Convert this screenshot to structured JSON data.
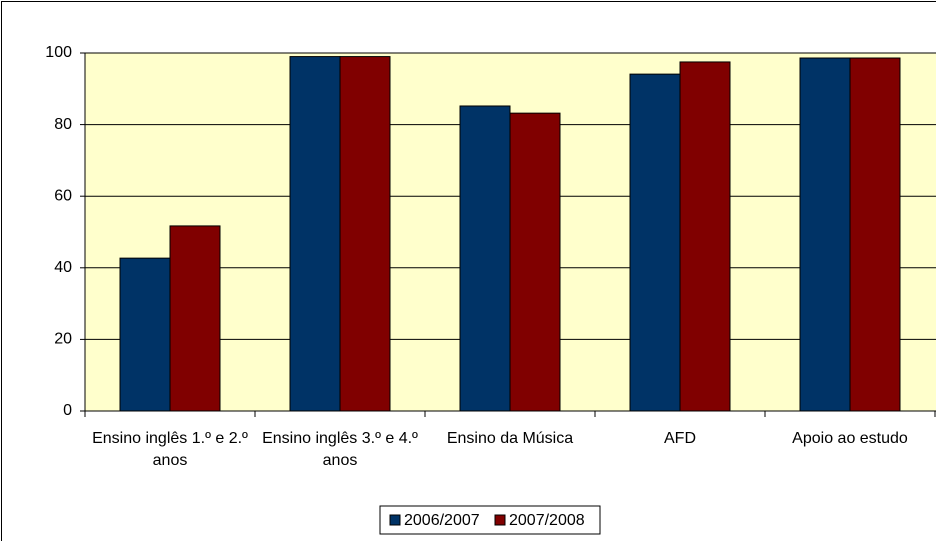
{
  "chart_data": {
    "type": "bar",
    "categories": [
      "Ensino inglês 1.º e 2.º anos",
      "Ensino inglês 3.º e 4.º anos",
      "Ensino da Música",
      "AFD",
      "Apoio ao estudo"
    ],
    "series": [
      {
        "name": "2006/2007",
        "color": "#003366",
        "values": [
          42.7,
          99,
          85.2,
          94.1,
          98.6
        ]
      },
      {
        "name": "2007/2008",
        "color": "#800000",
        "values": [
          51.7,
          99,
          83.2,
          97.5,
          98.6
        ]
      }
    ],
    "ylim": [
      0,
      100
    ],
    "yticks": [
      0,
      20,
      40,
      60,
      80,
      100
    ],
    "grid": true,
    "legend": "bottom"
  }
}
